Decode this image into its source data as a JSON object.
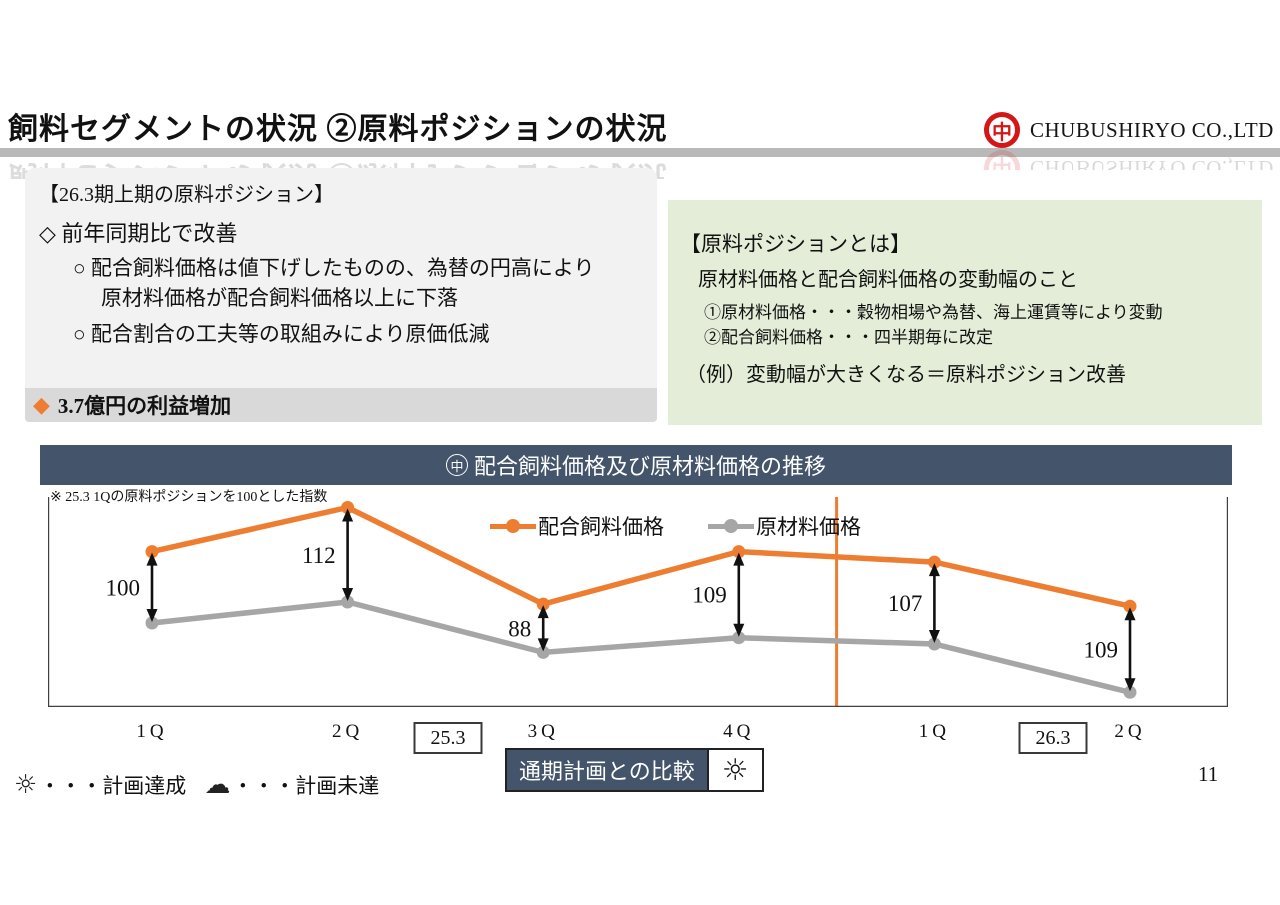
{
  "page_number": "11",
  "header": {
    "title": "飼料セグメントの状況 ②原料ポジションの状況",
    "logo_mark": "中",
    "logo_text": "CHUBUSHIRYO CO.,LTD"
  },
  "summary_box": {
    "heading": "【26.3期上期の原料ポジション】",
    "point_main": "◇ 前年同期比で改善",
    "sub1_line1": "○ 配合飼料価格は値下げしたものの、為替の円高により",
    "sub1_line2": "原材料価格が配合飼料価格以上に下落",
    "sub2": "○ 配合割合の工夫等の取組みにより原価低減",
    "highlight_bullet": "◆",
    "highlight_text": "3.7億円の利益増加"
  },
  "definition_box": {
    "heading": "【原料ポジションとは】",
    "subheading": "原材料価格と配合飼料価格の変動幅のこと",
    "item1": "①原材料価格・・・穀物相場や為替、海上運賃等により変動",
    "item2": "②配合飼料価格・・・四半期毎に改定",
    "example": "（例）変動幅が大きくなる＝原料ポジション改善"
  },
  "chart_header": {
    "mark": "中",
    "title": "配合飼料価格及び原材料価格の推移"
  },
  "chart_data": {
    "type": "line",
    "title": "配合飼料価格及び原材料価格の推移",
    "note": "※ 25.3 1Qの原料ポジションを100とした指数",
    "categories": [
      "1Q",
      "2Q",
      "3Q",
      "4Q",
      "1Q",
      "2Q"
    ],
    "fiscal_periods": [
      {
        "label": "25.3",
        "span": [
          0,
          3
        ]
      },
      {
        "label": "26.3",
        "span": [
          4,
          5
        ]
      }
    ],
    "series": [
      {
        "name": "配合飼料価格",
        "color": "#ED7D31",
        "est_level_pct": [
          74,
          95,
          49,
          74,
          69,
          48
        ]
      },
      {
        "name": "原材料価格",
        "color": "#A6A6A6",
        "est_level_pct": [
          40,
          50,
          26,
          33,
          30,
          7
        ]
      }
    ],
    "position_index": {
      "name": "原料ポジション指数",
      "values": [
        100,
        112,
        88,
        109,
        107,
        109
      ]
    },
    "divider_between": [
      3,
      4
    ],
    "legend_position": "top-center",
    "y_axis": "hidden"
  },
  "footer": {
    "weather_legend": [
      {
        "icon": "sun-icon",
        "glyph": "☼",
        "label": "・・・計画達成"
      },
      {
        "icon": "cloud-icon",
        "glyph": "☁",
        "label": "・・・計画未達"
      }
    ],
    "comparison_label": "通期計画との比較",
    "comparison_status_glyph": "☼"
  },
  "colors": {
    "accent_orange": "#ED7D31",
    "line_gray": "#A6A6A6",
    "header_slate": "#44546A",
    "box_gray": "#F2F2F2",
    "strip_gray": "#D9D9D9",
    "box_green": "#E3EDD8",
    "logo_red": "#D41616"
  }
}
